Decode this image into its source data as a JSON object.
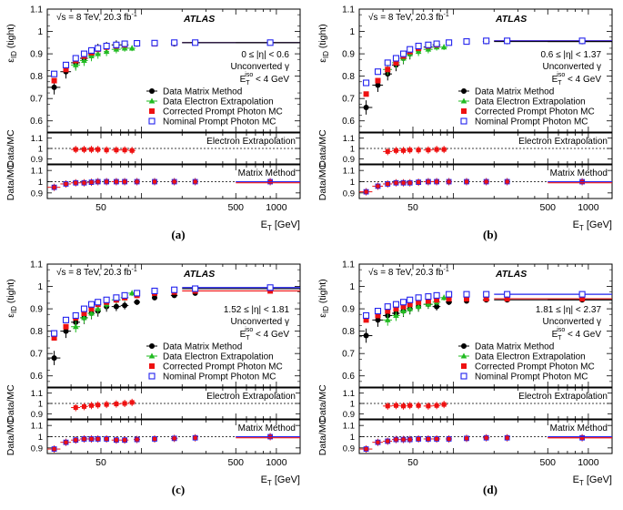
{
  "chart_data": [
    {
      "type": "scatter",
      "caption": "(a)",
      "energy_text": "√s = 8 TeV, 20.3 fb",
      "energy_sup": "-1",
      "atlas": "ATLAS",
      "eta_text": "0 ≤ |η| < 0.6",
      "conv_text": "Unconverted γ",
      "iso_text": "< 4 GeV",
      "ylabel": "ε_ID (tight)",
      "ratio_ylabel": "Data/MC",
      "xlabel": "E_T [GeV]",
      "ylim": [
        0.55,
        1.1
      ],
      "xlim": [
        20,
        1500
      ],
      "xticks": [
        50,
        500,
        1000
      ],
      "yticks": [
        0.6,
        0.7,
        0.8,
        0.9,
        1.0,
        1.1
      ],
      "ratio_yticks": [
        0.9,
        1.0,
        1.1
      ],
      "ratio_ylim": [
        0.85,
        1.15
      ],
      "ratio1_title": "Electron Extrapolation",
      "ratio2_title": "Matrix Method",
      "legend": [
        "Data Matrix Method",
        "Data Electron Extrapolation",
        "Corrected Prompt Photon MC",
        "Nominal Prompt Photon MC"
      ],
      "series": [
        {
          "name": "Data Matrix Method",
          "x": [
            22.5,
            27.5,
            32.5,
            37.5,
            42.5,
            47.5,
            55,
            65,
            75,
            92.5,
            125,
            175,
            250,
            900
          ],
          "y": [
            0.75,
            0.82,
            0.86,
            0.88,
            0.9,
            0.92,
            0.93,
            0.94,
            0.94,
            0.945,
            0.945,
            0.945,
            0.95,
            0.95
          ]
        },
        {
          "name": "Data Electron Extrapolation",
          "x": [
            32.5,
            37.5,
            42.5,
            47.5,
            55,
            65,
            75,
            85
          ],
          "y": [
            0.85,
            0.87,
            0.89,
            0.9,
            0.91,
            0.92,
            0.925,
            0.925
          ]
        },
        {
          "name": "Corrected Prompt Photon MC",
          "x": [
            22.5,
            27.5,
            32.5,
            37.5,
            42.5,
            47.5,
            55,
            65,
            75,
            92.5,
            125,
            175,
            250,
            900
          ],
          "y": [
            0.78,
            0.83,
            0.87,
            0.89,
            0.905,
            0.92,
            0.93,
            0.935,
            0.94,
            0.945,
            0.945,
            0.948,
            0.95,
            0.95
          ]
        },
        {
          "name": "Nominal Prompt Photon MC",
          "x": [
            22.5,
            27.5,
            32.5,
            37.5,
            42.5,
            47.5,
            55,
            65,
            75,
            92.5,
            125,
            175,
            250,
            900
          ],
          "y": [
            0.81,
            0.85,
            0.88,
            0.9,
            0.915,
            0.925,
            0.935,
            0.94,
            0.945,
            0.947,
            0.948,
            0.95,
            0.95,
            0.95
          ]
        }
      ],
      "ratio1": {
        "x": [
          32.5,
          37.5,
          42.5,
          47.5,
          55,
          65,
          75,
          85
        ],
        "y": [
          0.99,
          0.99,
          0.99,
          0.99,
          0.985,
          0.985,
          0.985,
          0.98
        ]
      },
      "ratio2": {
        "x": [
          22.5,
          27.5,
          32.5,
          37.5,
          42.5,
          47.5,
          55,
          65,
          75,
          92.5,
          125,
          175,
          250,
          900
        ],
        "y": [
          0.95,
          0.98,
          0.99,
          0.99,
          0.995,
          1.0,
          1.0,
          1.0,
          1.0,
          1.0,
          1.0,
          1.0,
          1.0,
          1.0
        ]
      }
    },
    {
      "type": "scatter",
      "caption": "(b)",
      "energy_text": "√s = 8 TeV, 20.3 fb",
      "energy_sup": "-1",
      "atlas": "ATLAS",
      "eta_text": "0.6 ≤ |η| < 1.37",
      "conv_text": "Unconverted γ",
      "iso_text": "< 4 GeV",
      "ylabel": "ε_ID (tight)",
      "ratio_ylabel": "Data/MC",
      "xlabel": "E_T [GeV]",
      "ylim": [
        0.55,
        1.1
      ],
      "xlim": [
        20,
        1500
      ],
      "xticks": [
        50,
        500,
        1000
      ],
      "yticks": [
        0.6,
        0.7,
        0.8,
        0.9,
        1.0,
        1.1
      ],
      "ratio_yticks": [
        0.9,
        1.0,
        1.1
      ],
      "ratio_ylim": [
        0.85,
        1.15
      ],
      "ratio1_title": "Electron Extrapolation",
      "ratio2_title": "Matrix Method",
      "legend": [
        "Data Matrix Method",
        "Data Electron Extrapolation",
        "Corrected Prompt Photon MC",
        "Nominal Prompt Photon MC"
      ],
      "series": [
        {
          "name": "Data Matrix Method",
          "x": [
            22.5,
            27.5,
            32.5,
            37.5,
            42.5,
            47.5,
            55,
            65,
            75,
            92.5,
            125,
            175,
            250,
            900
          ],
          "y": [
            0.66,
            0.76,
            0.81,
            0.85,
            0.88,
            0.9,
            0.92,
            0.93,
            0.94,
            0.95,
            0.955,
            0.955,
            0.955,
            0.955
          ]
        },
        {
          "name": "Data Electron Extrapolation",
          "x": [
            32.5,
            37.5,
            42.5,
            47.5,
            55,
            65,
            75,
            85
          ],
          "y": [
            0.83,
            0.86,
            0.88,
            0.9,
            0.91,
            0.92,
            0.93,
            0.93
          ]
        },
        {
          "name": "Corrected Prompt Photon MC",
          "x": [
            22.5,
            27.5,
            32.5,
            37.5,
            42.5,
            47.5,
            55,
            65,
            75,
            92.5,
            125,
            175,
            250,
            900
          ],
          "y": [
            0.72,
            0.78,
            0.83,
            0.86,
            0.89,
            0.91,
            0.925,
            0.935,
            0.94,
            0.95,
            0.955,
            0.958,
            0.958,
            0.958
          ]
        },
        {
          "name": "Nominal Prompt Photon MC",
          "x": [
            22.5,
            27.5,
            32.5,
            37.5,
            42.5,
            47.5,
            55,
            65,
            75,
            92.5,
            125,
            175,
            250,
            900
          ],
          "y": [
            0.77,
            0.82,
            0.86,
            0.88,
            0.9,
            0.92,
            0.935,
            0.94,
            0.945,
            0.95,
            0.955,
            0.958,
            0.958,
            0.958
          ]
        }
      ],
      "ratio1": {
        "x": [
          32.5,
          37.5,
          42.5,
          47.5,
          55,
          65,
          75,
          85
        ],
        "y": [
          0.97,
          0.98,
          0.98,
          0.985,
          0.985,
          0.985,
          0.99,
          0.99
        ]
      },
      "ratio2": {
        "x": [
          22.5,
          27.5,
          32.5,
          37.5,
          42.5,
          47.5,
          55,
          65,
          75,
          92.5,
          125,
          175,
          250,
          900
        ],
        "y": [
          0.91,
          0.96,
          0.98,
          0.99,
          0.99,
          0.99,
          0.995,
          1.0,
          1.0,
          1.0,
          1.0,
          1.0,
          1.0,
          1.0
        ]
      }
    },
    {
      "type": "scatter",
      "caption": "(c)",
      "energy_text": "√s = 8 TeV, 20.3 fb",
      "energy_sup": "-1",
      "atlas": "ATLAS",
      "eta_text": "1.52 ≤ |η| < 1.81",
      "conv_text": "Unconverted γ",
      "iso_text": "< 4 GeV",
      "ylabel": "ε_ID (tight)",
      "ratio_ylabel": "Data/MC",
      "xlabel": "E_T [GeV]",
      "ylim": [
        0.55,
        1.1
      ],
      "xlim": [
        20,
        1500
      ],
      "xticks": [
        50,
        500,
        1000
      ],
      "yticks": [
        0.6,
        0.7,
        0.8,
        0.9,
        1.0,
        1.1
      ],
      "ratio_yticks": [
        0.9,
        1.0,
        1.1
      ],
      "ratio_ylim": [
        0.85,
        1.15
      ],
      "ratio1_title": "Electron Extrapolation",
      "ratio2_title": "Matrix Method",
      "legend": [
        "Data Matrix Method",
        "Data Electron Extrapolation",
        "Corrected Prompt Photon MC",
        "Nominal Prompt Photon MC"
      ],
      "series": [
        {
          "name": "Data Matrix Method",
          "x": [
            22.5,
            27.5,
            32.5,
            37.5,
            42.5,
            47.5,
            55,
            65,
            75,
            92.5,
            125,
            175,
            250,
            900
          ],
          "y": [
            0.68,
            0.8,
            0.84,
            0.86,
            0.88,
            0.89,
            0.91,
            0.91,
            0.915,
            0.93,
            0.95,
            0.96,
            0.97,
            0.99
          ]
        },
        {
          "name": "Data Electron Extrapolation",
          "x": [
            32.5,
            37.5,
            42.5,
            47.5,
            55,
            65,
            75,
            85
          ],
          "y": [
            0.82,
            0.86,
            0.88,
            0.9,
            0.92,
            0.94,
            0.95,
            0.97
          ]
        },
        {
          "name": "Corrected Prompt Photon MC",
          "x": [
            22.5,
            27.5,
            32.5,
            37.5,
            42.5,
            47.5,
            55,
            65,
            75,
            92.5,
            125,
            175,
            250,
            900
          ],
          "y": [
            0.77,
            0.82,
            0.86,
            0.88,
            0.9,
            0.92,
            0.93,
            0.94,
            0.95,
            0.96,
            0.97,
            0.975,
            0.98,
            0.98
          ]
        },
        {
          "name": "Nominal Prompt Photon MC",
          "x": [
            22.5,
            27.5,
            32.5,
            37.5,
            42.5,
            47.5,
            55,
            65,
            75,
            92.5,
            125,
            175,
            250,
            900
          ],
          "y": [
            0.79,
            0.85,
            0.87,
            0.9,
            0.92,
            0.93,
            0.94,
            0.95,
            0.96,
            0.97,
            0.98,
            0.985,
            0.99,
            0.995
          ]
        }
      ],
      "ratio1": {
        "x": [
          32.5,
          37.5,
          42.5,
          47.5,
          55,
          65,
          75,
          85
        ],
        "y": [
          0.96,
          0.97,
          0.98,
          0.985,
          0.99,
          0.995,
          1.0,
          1.01
        ]
      },
      "ratio2": {
        "x": [
          22.5,
          27.5,
          32.5,
          37.5,
          42.5,
          47.5,
          55,
          65,
          75,
          92.5,
          125,
          175,
          250,
          900
        ],
        "y": [
          0.89,
          0.95,
          0.97,
          0.98,
          0.98,
          0.98,
          0.98,
          0.97,
          0.97,
          0.975,
          0.98,
          0.985,
          0.99,
          1.0
        ]
      }
    },
    {
      "type": "scatter",
      "caption": "(d)",
      "energy_text": "√s = 8 TeV, 20.3 fb",
      "energy_sup": "-1",
      "atlas": "ATLAS",
      "eta_text": "1.81 ≤ |η| < 2.37",
      "conv_text": "Unconverted γ",
      "iso_text": "< 4 GeV",
      "ylabel": "ε_ID (tight)",
      "ratio_ylabel": "Data/MC",
      "xlabel": "E_T [GeV]",
      "ylim": [
        0.55,
        1.1
      ],
      "xlim": [
        20,
        1500
      ],
      "xticks": [
        50,
        500,
        1000
      ],
      "yticks": [
        0.6,
        0.7,
        0.8,
        0.9,
        1.0,
        1.1
      ],
      "ratio_yticks": [
        0.9,
        1.0,
        1.1
      ],
      "ratio_ylim": [
        0.85,
        1.15
      ],
      "ratio1_title": "Electron Extrapolation",
      "ratio2_title": "Matrix Method",
      "legend": [
        "Data Matrix Method",
        "Data Electron Extrapolation",
        "Corrected Prompt Photon MC",
        "Nominal Prompt Photon MC"
      ],
      "series": [
        {
          "name": "Data Matrix Method",
          "x": [
            22.5,
            27.5,
            32.5,
            37.5,
            42.5,
            47.5,
            55,
            65,
            75,
            92.5,
            125,
            175,
            250,
            900
          ],
          "y": [
            0.78,
            0.85,
            0.87,
            0.88,
            0.89,
            0.9,
            0.91,
            0.92,
            0.91,
            0.93,
            0.935,
            0.94,
            0.94,
            0.94
          ]
        },
        {
          "name": "Data Electron Extrapolation",
          "x": [
            32.5,
            37.5,
            42.5,
            47.5,
            55,
            65,
            75,
            85
          ],
          "y": [
            0.85,
            0.87,
            0.89,
            0.9,
            0.91,
            0.92,
            0.93,
            0.95
          ]
        },
        {
          "name": "Corrected Prompt Photon MC",
          "x": [
            22.5,
            27.5,
            32.5,
            37.5,
            42.5,
            47.5,
            55,
            65,
            75,
            92.5,
            125,
            175,
            250,
            900
          ],
          "y": [
            0.85,
            0.87,
            0.89,
            0.9,
            0.91,
            0.92,
            0.93,
            0.935,
            0.94,
            0.945,
            0.945,
            0.945,
            0.945,
            0.945
          ]
        },
        {
          "name": "Nominal Prompt Photon MC",
          "x": [
            22.5,
            27.5,
            32.5,
            37.5,
            42.5,
            47.5,
            55,
            65,
            75,
            92.5,
            125,
            175,
            250,
            900
          ],
          "y": [
            0.87,
            0.89,
            0.91,
            0.92,
            0.93,
            0.94,
            0.95,
            0.955,
            0.96,
            0.965,
            0.965,
            0.965,
            0.965,
            0.965
          ]
        }
      ],
      "ratio1": {
        "x": [
          32.5,
          37.5,
          42.5,
          47.5,
          55,
          65,
          75,
          85
        ],
        "y": [
          0.975,
          0.98,
          0.975,
          0.98,
          0.98,
          0.975,
          0.98,
          0.99
        ]
      },
      "ratio2": {
        "x": [
          22.5,
          27.5,
          32.5,
          37.5,
          42.5,
          47.5,
          55,
          65,
          75,
          92.5,
          125,
          175,
          250,
          900
        ],
        "y": [
          0.89,
          0.95,
          0.96,
          0.975,
          0.975,
          0.975,
          0.98,
          0.98,
          0.98,
          0.98,
          0.985,
          0.99,
          0.99,
          0.99
        ]
      }
    }
  ],
  "colors": {
    "data_mm": "#000000",
    "data_ee": "#22bb22",
    "corrected_mc": "#ee1111",
    "nominal_mc": "#2222ee"
  }
}
